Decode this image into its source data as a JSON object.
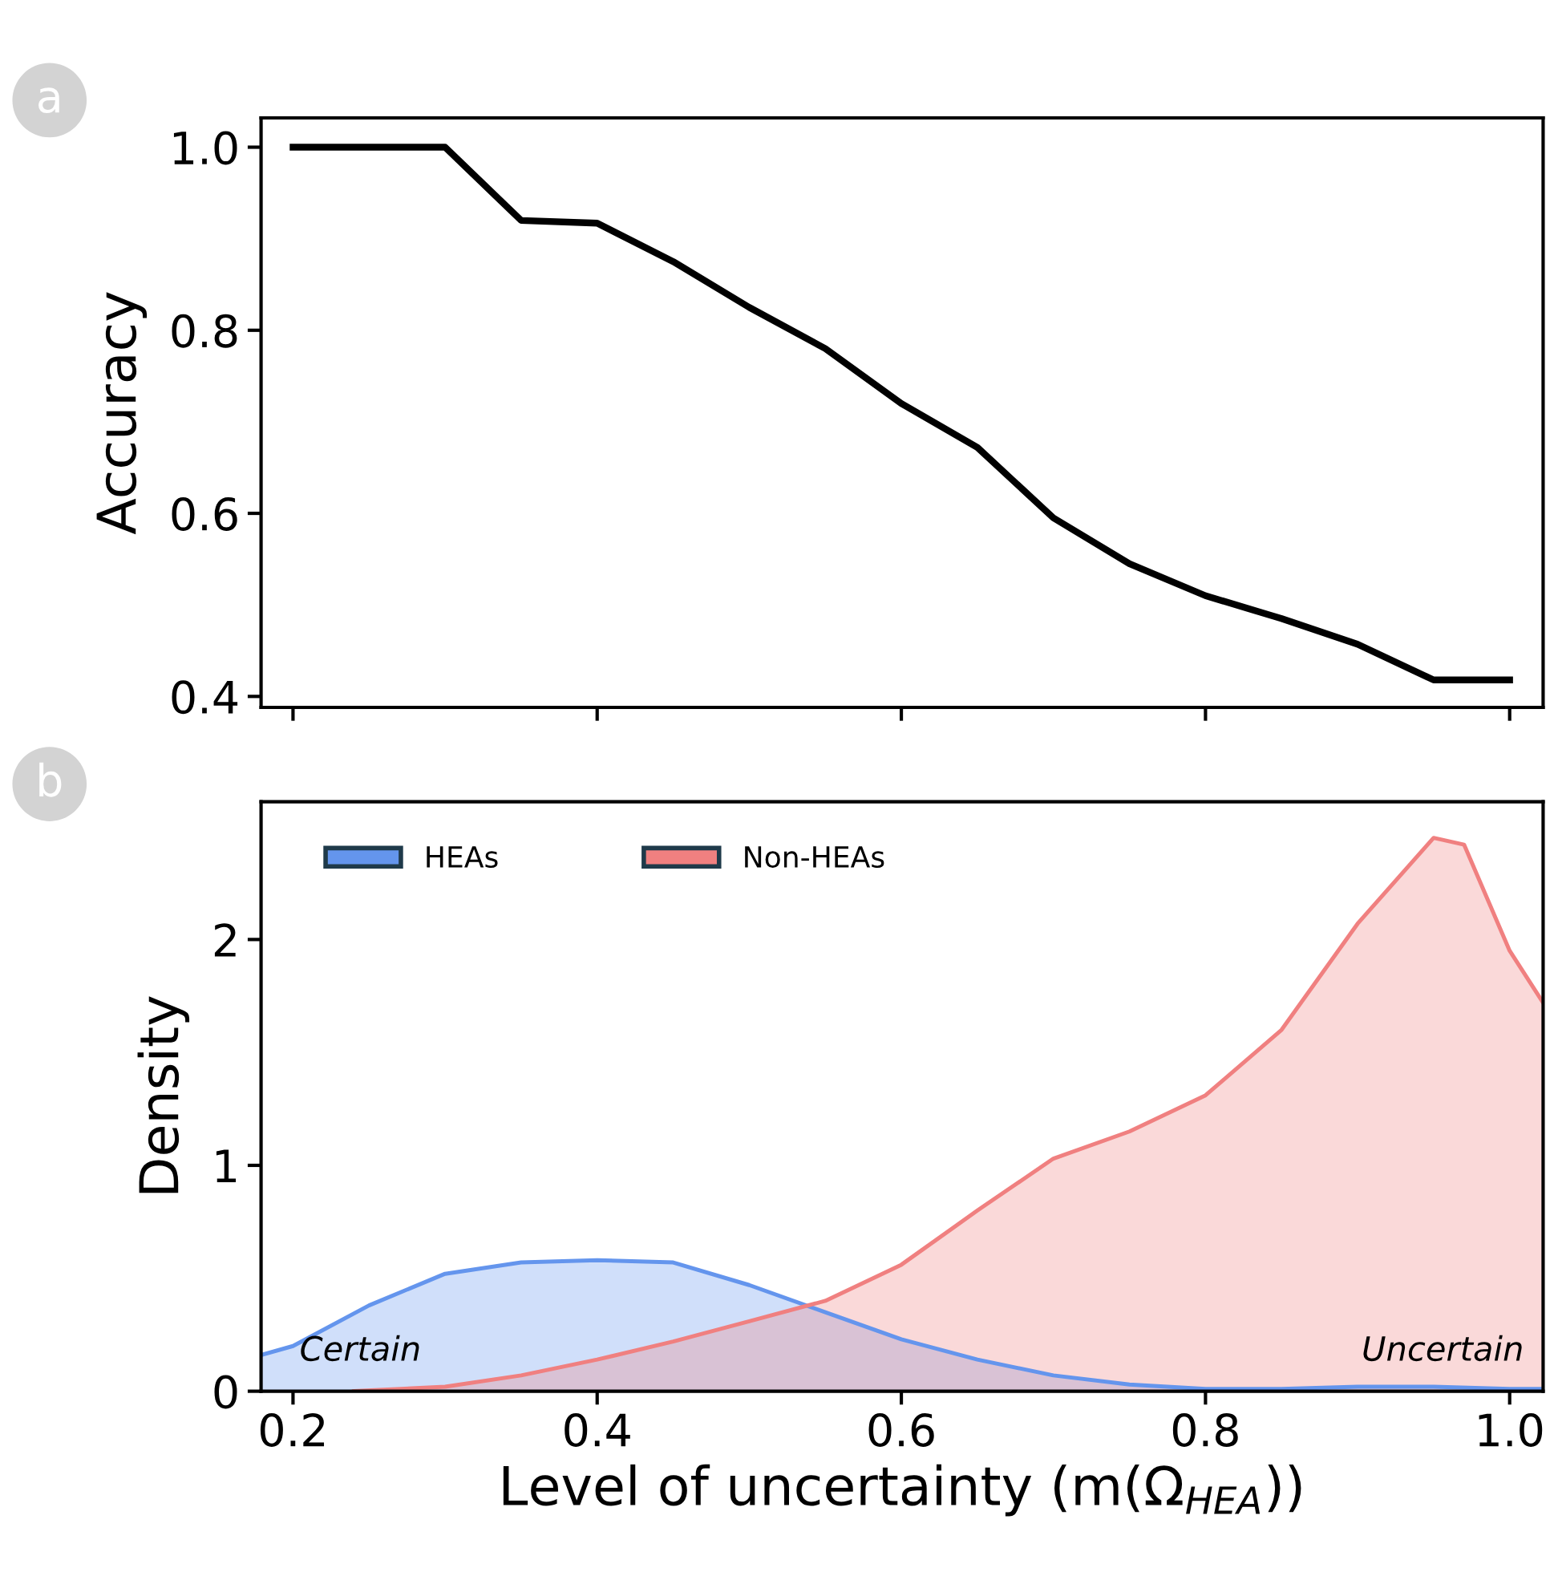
{
  "chart_data": [
    {
      "type": "line",
      "ylabel": "Accuracy",
      "annotations": [
        "a"
      ],
      "x": [
        0.2,
        0.25,
        0.3,
        0.35,
        0.4,
        0.45,
        0.5,
        0.55,
        0.6,
        0.65,
        0.7,
        0.75,
        0.8,
        0.85,
        0.9,
        0.95,
        1.0
      ],
      "series": [
        {
          "color": "#000000",
          "values": [
            1.0,
            1.0,
            1.0,
            0.92,
            0.917,
            0.875,
            0.825,
            0.78,
            0.72,
            0.672,
            0.595,
            0.545,
            0.51,
            0.485,
            0.457,
            0.418,
            0.418
          ]
        }
      ],
      "xlim": [
        0.179,
        1.022
      ],
      "xticks": [
        {
          "value": 0.2,
          "label": null
        },
        {
          "value": 0.4,
          "label": null
        },
        {
          "value": 0.6,
          "label": null
        },
        {
          "value": 0.8,
          "label": null
        },
        {
          "value": 1.0,
          "label": null
        }
      ],
      "ylim": [
        0.388,
        1.032
      ],
      "yticks": [
        {
          "value": 0.4,
          "label": "0.4"
        },
        {
          "value": 0.6,
          "label": "0.6"
        },
        {
          "value": 0.8,
          "label": "0.8"
        },
        {
          "value": 1.0,
          "label": "1.0"
        }
      ],
      "tick_labels": "y",
      "grid": false,
      "legend": false,
      "line_style": "solid",
      "marker": "none"
    },
    {
      "type": "area",
      "xlabel": "Level of uncertainty (m(Ω$_{HEA}$))",
      "ylabel": "Density",
      "annotations": [
        "b",
        "Certain",
        "Uncertain"
      ],
      "series": [
        {
          "name": "HEAs",
          "color": "#6495ed",
          "x": [
            0.179,
            0.2,
            0.25,
            0.3,
            0.35,
            0.4,
            0.45,
            0.5,
            0.55,
            0.6,
            0.65,
            0.7,
            0.75,
            0.8,
            0.85,
            0.9,
            0.95,
            1.0,
            1.022
          ],
          "values": [
            0.16,
            0.2,
            0.38,
            0.52,
            0.57,
            0.58,
            0.57,
            0.47,
            0.35,
            0.23,
            0.14,
            0.07,
            0.03,
            0.01,
            0.01,
            0.02,
            0.02,
            0.01,
            0.01
          ]
        },
        {
          "name": "Non-HEAs",
          "color": "#f08080",
          "x": [
            0.24,
            0.3,
            0.35,
            0.4,
            0.45,
            0.5,
            0.55,
            0.6,
            0.65,
            0.7,
            0.75,
            0.8,
            0.85,
            0.9,
            0.95,
            0.97,
            1.0,
            1.022
          ],
          "values": [
            0.0,
            0.02,
            0.07,
            0.14,
            0.22,
            0.31,
            0.4,
            0.56,
            0.8,
            1.03,
            1.15,
            1.31,
            1.6,
            2.07,
            2.45,
            2.42,
            1.95,
            1.72
          ]
        }
      ],
      "xlim": [
        0.179,
        1.022
      ],
      "xticks": [
        {
          "value": 0.2,
          "label": "0.2"
        },
        {
          "value": 0.4,
          "label": "0.4"
        },
        {
          "value": 0.6,
          "label": "0.6"
        },
        {
          "value": 0.8,
          "label": "0.8"
        },
        {
          "value": 1.0,
          "label": "1.0"
        }
      ],
      "ylim": [
        0,
        2.61
      ],
      "yticks": [
        0,
        1,
        2
      ],
      "grid": false,
      "legend": "top left"
    }
  ]
}
